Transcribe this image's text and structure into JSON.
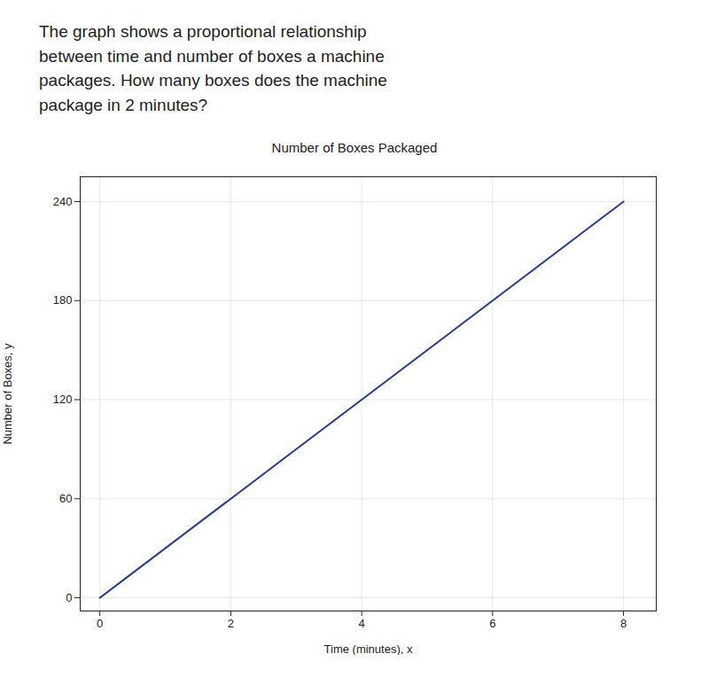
{
  "chart_data": {
    "type": "line",
    "title": "Number of Boxes Packaged",
    "annotations": [
      "The graph shows a proportional relationship\nbetween time and number of boxes a machine\npackages. How many boxes does the machine\npackage in 2 minutes?"
    ],
    "xlabel": "Time (minutes), x",
    "ylabel": "Number of Boxes, y",
    "x": [
      0,
      8
    ],
    "values": [
      0,
      240
    ],
    "color": "#2c3e8c",
    "xlim": [
      -0.3,
      8.5
    ],
    "ylim": [
      -8,
      255
    ],
    "xticks": [
      0,
      2,
      4,
      6,
      8
    ],
    "yticks": [
      0,
      60,
      120,
      180,
      240
    ],
    "grid": true
  }
}
